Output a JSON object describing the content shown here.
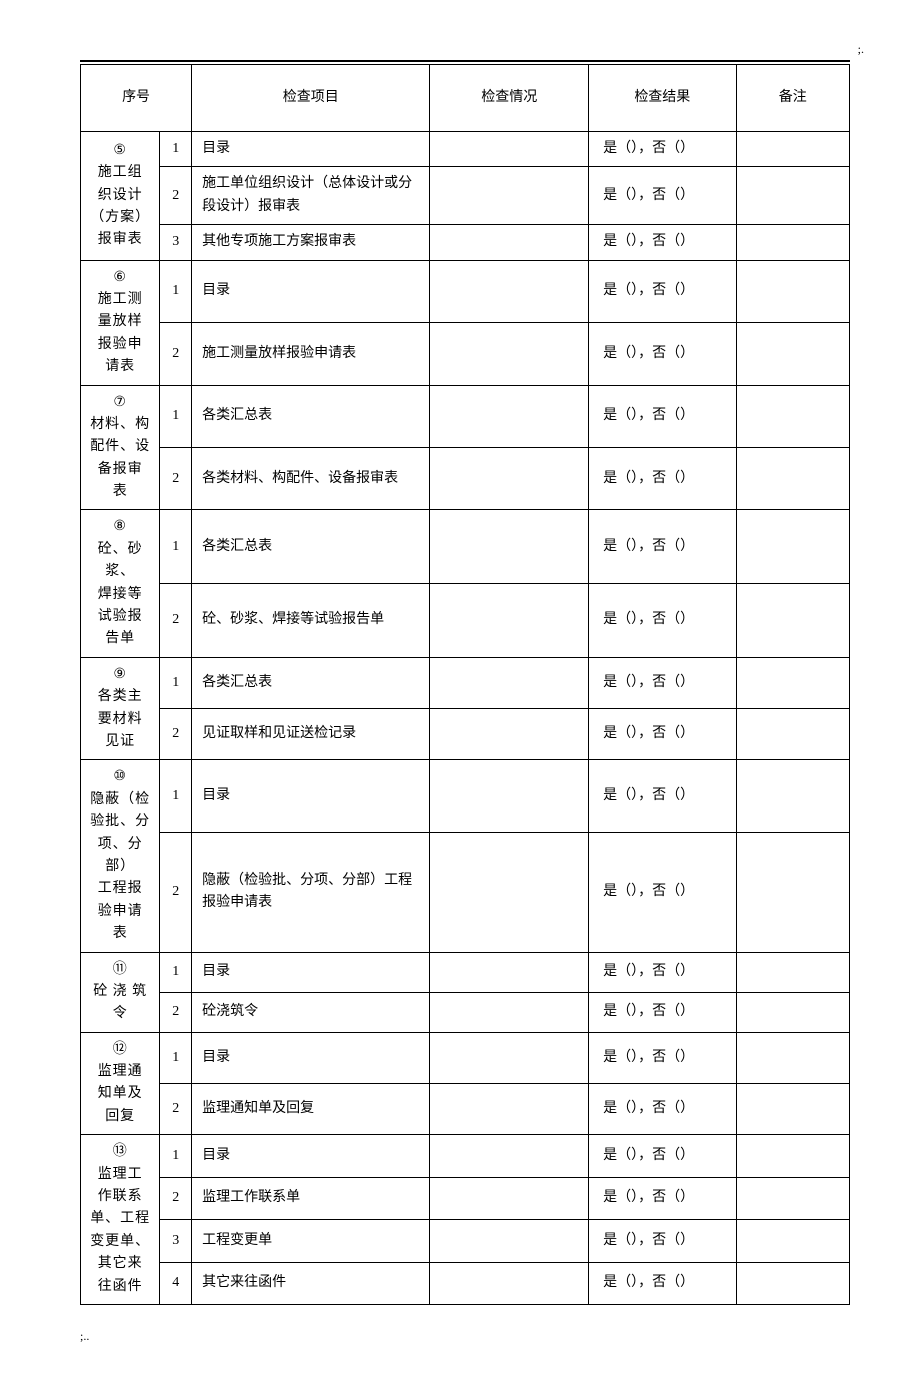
{
  "header": {
    "seq": "序号",
    "item": "检查项目",
    "cond": "检查情况",
    "result": "检查结果",
    "note": "备注",
    "semi": ";.",
    "footer_semi": ";.."
  },
  "result_text": "是（），否（）",
  "groups": [
    {
      "marker": "⑤",
      "label": "施工组\n织设计\n（方案）\n报审表",
      "rows": [
        {
          "n": "1",
          "item": "目录"
        },
        {
          "n": "2",
          "item": "施工单位组织设计（总体设计或分段设计）报审表"
        },
        {
          "n": "3",
          "item": "其他专项施工方案报审表"
        }
      ]
    },
    {
      "marker": "⑥",
      "label": "施工测\n量放样\n报验申\n请表",
      "rows": [
        {
          "n": "1",
          "item": "目录"
        },
        {
          "n": "2",
          "item": "施工测量放样报验申请表"
        }
      ]
    },
    {
      "marker": "⑦",
      "label": "材料、构\n配件、设\n备报审\n表",
      "rows": [
        {
          "n": "1",
          "item": "各类汇总表"
        },
        {
          "n": "2",
          "item": "各类材料、构配件、设备报审表"
        }
      ]
    },
    {
      "marker": "⑧",
      "label": "砼、砂浆、\n焊接等\n试验报\n告单",
      "rows": [
        {
          "n": "1",
          "item": "各类汇总表"
        },
        {
          "n": "2",
          "item": "砼、砂浆、焊接等试验报告单"
        }
      ]
    },
    {
      "marker": "⑨",
      "label": "各类主\n要材料\n见证",
      "rows": [
        {
          "n": "1",
          "item": "各类汇总表"
        },
        {
          "n": "2",
          "item": "见证取样和见证送检记录"
        }
      ]
    },
    {
      "marker": "⑩",
      "label": "隐蔽（检\n验批、分\n项、分部）\n工程报\n验申请\n表",
      "rows": [
        {
          "n": "1",
          "item": "目录"
        },
        {
          "n": "2",
          "item": "隐蔽（检验批、分项、分部）工程报验申请表"
        }
      ]
    },
    {
      "marker": "⑪",
      "label": "砼 浇 筑\n令",
      "rows": [
        {
          "n": "1",
          "item": "目录"
        },
        {
          "n": "2",
          "item": "砼浇筑令"
        }
      ]
    },
    {
      "marker": "⑫",
      "label": "监理通\n知单及\n回复",
      "rows": [
        {
          "n": "1",
          "item": "目录"
        },
        {
          "n": "2",
          "item": "监理通知单及回复"
        }
      ]
    },
    {
      "marker": "⑬",
      "label": "监理工\n作联系\n单、工程\n变更单、\n其它来\n往函件",
      "rows": [
        {
          "n": "1",
          "item": "目录"
        },
        {
          "n": "2",
          "item": "监理工作联系单"
        },
        {
          "n": "3",
          "item": "工程变更单"
        },
        {
          "n": "4",
          "item": "其它来往函件"
        }
      ]
    }
  ]
}
